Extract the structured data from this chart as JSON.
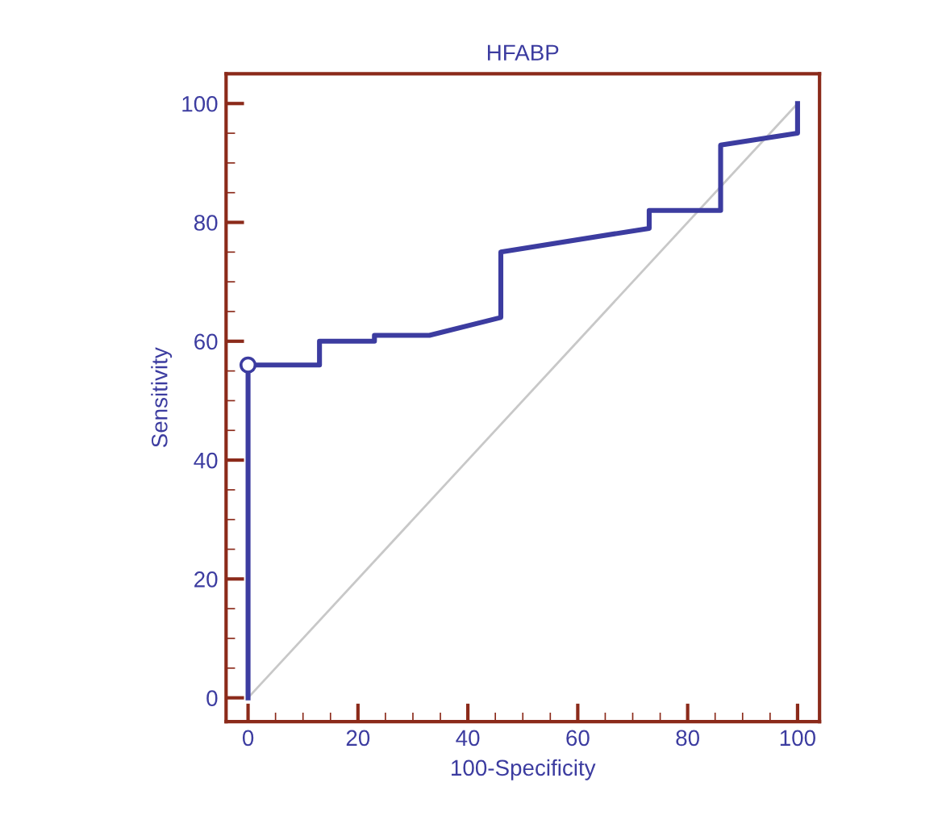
{
  "chart_data": {
    "type": "line",
    "title": "HFABP",
    "xlabel": "100-Specificity",
    "ylabel": "Sensitivity",
    "xlim": [
      -4,
      104
    ],
    "ylim": [
      -4,
      105
    ],
    "xticks": [
      0,
      20,
      40,
      60,
      80,
      100
    ],
    "yticks": [
      0,
      20,
      40,
      60,
      80,
      100
    ],
    "grid": false,
    "legend": false,
    "series": [
      {
        "color": "#c8c8c8",
        "x": [
          0,
          100
        ],
        "values": [
          0,
          100
        ]
      },
      {
        "color": "#3c3ca0",
        "x": [
          0,
          0,
          13,
          13,
          23,
          23,
          33,
          46,
          46,
          73,
          73,
          86,
          86,
          100,
          100
        ],
        "values": [
          0,
          56,
          56,
          60,
          60,
          61,
          61,
          64,
          75,
          79,
          82,
          82,
          93,
          95,
          100
        ]
      },
      {
        "type": "scatter",
        "color": "#3c3ca0",
        "marker": "circle",
        "x": [
          0
        ],
        "values": [
          56
        ]
      }
    ]
  }
}
